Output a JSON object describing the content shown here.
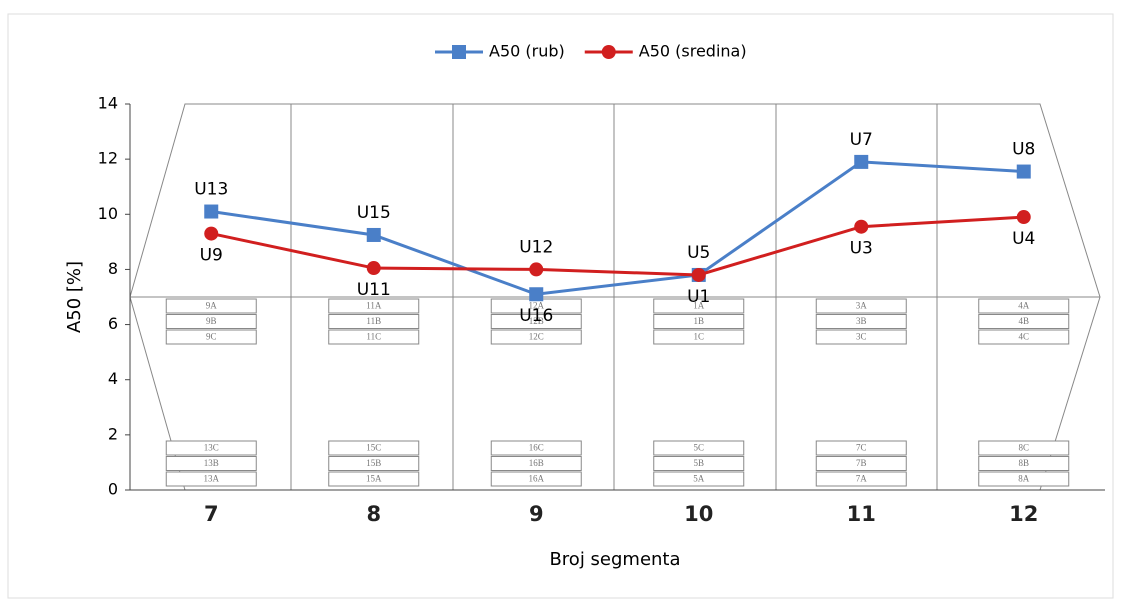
{
  "chart_data": {
    "type": "line",
    "xlabel": "Broj segmenta",
    "ylabel": "A50 [%]",
    "categories": [
      "7",
      "8",
      "9",
      "10",
      "11",
      "12"
    ],
    "series": [
      {
        "name": "A50 (rub)",
        "color": "#4a7fc8",
        "marker": "square",
        "values": [
          10.1,
          9.25,
          7.1,
          7.8,
          11.9,
          11.55
        ],
        "point_labels": [
          "U13",
          "U15",
          "U16",
          "U5",
          "U7",
          "U8"
        ]
      },
      {
        "name": "A50 (sredina)",
        "color": "#d11f1f",
        "marker": "circle",
        "values": [
          9.3,
          8.05,
          8.0,
          7.8,
          9.55,
          9.9
        ],
        "point_labels": [
          "U9",
          "U11",
          "U12",
          "U1",
          "U3",
          "U4"
        ]
      }
    ],
    "ylim": [
      0,
      14
    ],
    "yticks": [
      0,
      2,
      4,
      6,
      8,
      10,
      12,
      14
    ],
    "legend": "top",
    "segments": [
      {
        "top": [
          "9A",
          "9B",
          "9C"
        ],
        "bottom": [
          "13C",
          "13B",
          "13A"
        ]
      },
      {
        "top": [
          "11A",
          "11B",
          "11C"
        ],
        "bottom": [
          "15C",
          "15B",
          "15A"
        ]
      },
      {
        "top": [
          "12A",
          "12B",
          "12C"
        ],
        "bottom": [
          "16C",
          "16B",
          "16A"
        ]
      },
      {
        "top": [
          "1A",
          "1B",
          "1C"
        ],
        "bottom": [
          "5C",
          "5B",
          "5A"
        ]
      },
      {
        "top": [
          "3A",
          "3B",
          "3C"
        ],
        "bottom": [
          "7C",
          "7B",
          "7A"
        ]
      },
      {
        "top": [
          "4A",
          "4B",
          "4C"
        ],
        "bottom": [
          "8C",
          "8B",
          "8A"
        ]
      }
    ]
  }
}
